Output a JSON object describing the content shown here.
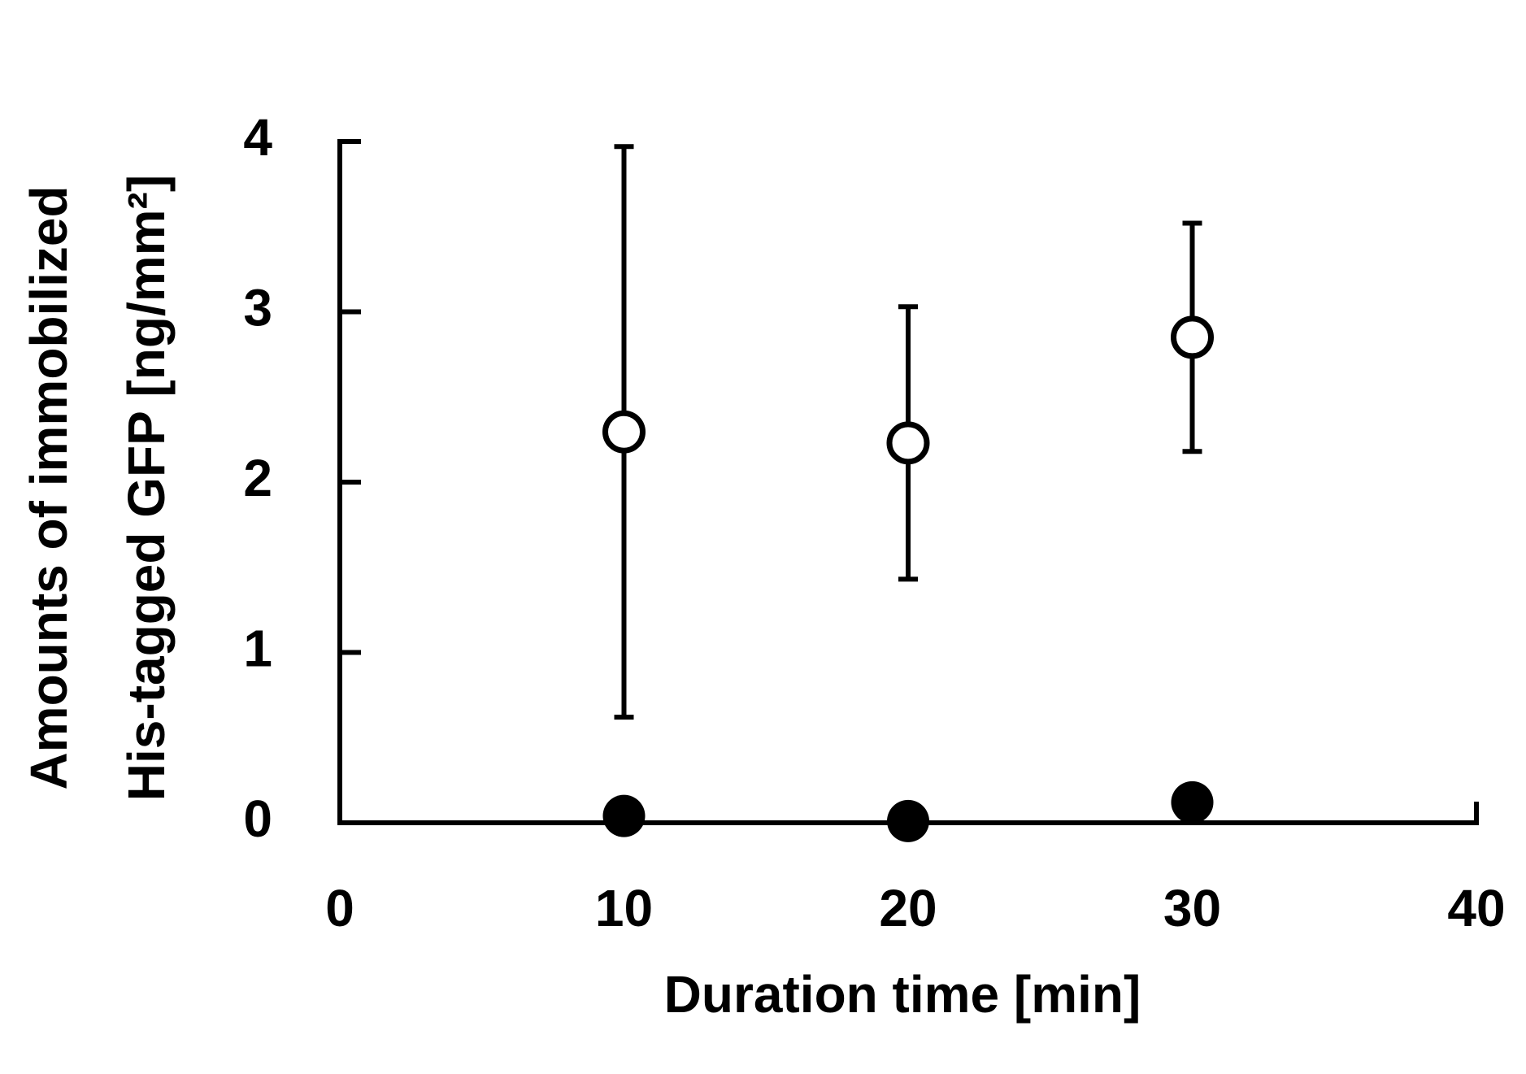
{
  "chart_data": {
    "type": "scatter",
    "ylabel": [
      "Amounts of immobilized",
      "His-tagged GFP [ng/mm²]"
    ],
    "xlabel": "Duration time [min]",
    "xlim": [
      0,
      40
    ],
    "xticks": [
      0,
      10,
      20,
      30,
      40
    ],
    "ylim": [
      0,
      4
    ],
    "yticks": [
      0,
      1,
      2,
      3,
      4
    ],
    "x": [
      10,
      20,
      30
    ],
    "series": [
      {
        "color": "#000000",
        "marker": "open-circle",
        "values": [
          2.295,
          2.23,
          2.85
        ],
        "errors": [
          1.675,
          0.8,
          0.67
        ]
      },
      {
        "color": "#000000",
        "marker": "filled-circle",
        "values": [
          0.04,
          0.01,
          0.12
        ]
      }
    ]
  }
}
